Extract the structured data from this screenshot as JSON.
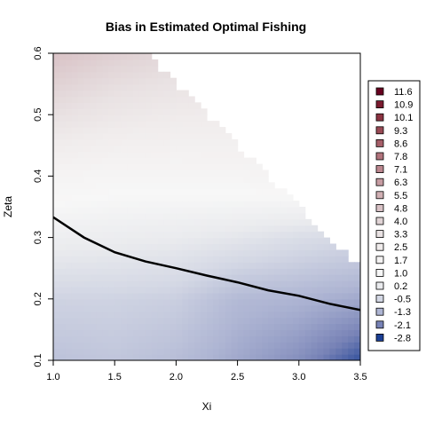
{
  "chart_data": {
    "type": "heatmap",
    "title": "Bias in Estimated Optimal Fishing",
    "xlabel": "Xi",
    "ylabel": "Zeta",
    "xlim": [
      1.0,
      3.5
    ],
    "ylim": [
      0.1,
      0.6
    ],
    "x_ticks": [
      "1.0",
      "1.5",
      "2.0",
      "2.5",
      "3.0",
      "3.5"
    ],
    "y_ticks": [
      "0.1",
      "0.2",
      "0.3",
      "0.4",
      "0.5",
      "0.6"
    ],
    "legend_placement": "right",
    "legend": {
      "labels": [
        "11.6",
        "10.9",
        "10.1",
        "9.3",
        "8.6",
        "7.8",
        "7.1",
        "6.3",
        "5.5",
        "4.8",
        "4.0",
        "3.3",
        "2.5",
        "1.7",
        "1.0",
        "0.2",
        "-0.5",
        "-1.3",
        "-2.1",
        "-2.8"
      ],
      "colors": [
        "#67001f",
        "#7a1a2e",
        "#8b3341",
        "#994a55",
        "#a65f69",
        "#b1737c",
        "#bc878f",
        "#c69ca2",
        "#d0b0b4",
        "#d9c2c6",
        "#e1d4d6",
        "#e9e2e3",
        "#f0ecec",
        "#f4f2f2",
        "#f7f7f7",
        "#eaebee",
        "#d3d7e4",
        "#aeb5d3",
        "#7782b6",
        "#1b3f94"
      ]
    },
    "feasibility_boundary": {
      "xi": [
        1.0,
        1.75,
        2.0,
        2.25,
        2.5,
        2.75,
        3.0,
        3.25,
        3.5
      ],
      "zeta": [
        0.6,
        0.6,
        0.55,
        0.5,
        0.45,
        0.4,
        0.35,
        0.3,
        0.25
      ]
    },
    "curve": {
      "xi": [
        1.0,
        1.25,
        1.5,
        1.75,
        2.0,
        2.25,
        2.5,
        2.75,
        3.0,
        3.25,
        3.5
      ],
      "zeta": [
        0.333,
        0.3,
        0.276,
        0.261,
        0.25,
        0.238,
        0.227,
        0.214,
        0.205,
        0.192,
        0.182
      ]
    },
    "bias_surface": {
      "xi": [
        1.0,
        1.5,
        2.0,
        2.5,
        3.0,
        3.5
      ],
      "zeta": [
        0.1,
        0.2,
        0.3,
        0.4,
        0.5,
        0.6
      ],
      "values": [
        [
          -1.0,
          -0.9,
          -1.1,
          -1.5,
          -1.9,
          -2.6
        ],
        [
          -0.6,
          -0.6,
          -0.7,
          -1.2,
          -1.3,
          -1.5
        ],
        [
          0.4,
          0.3,
          0.2,
          0.0,
          -0.3,
          -0.5
        ],
        [
          1.5,
          1.3,
          1.3,
          1.4,
          1.6,
          1.8
        ],
        [
          3.4,
          2.9,
          2.6,
          2.5,
          2.5,
          2.5
        ],
        [
          4.8,
          4.2,
          3.8,
          3.6,
          3.4,
          3.3
        ]
      ]
    }
  }
}
